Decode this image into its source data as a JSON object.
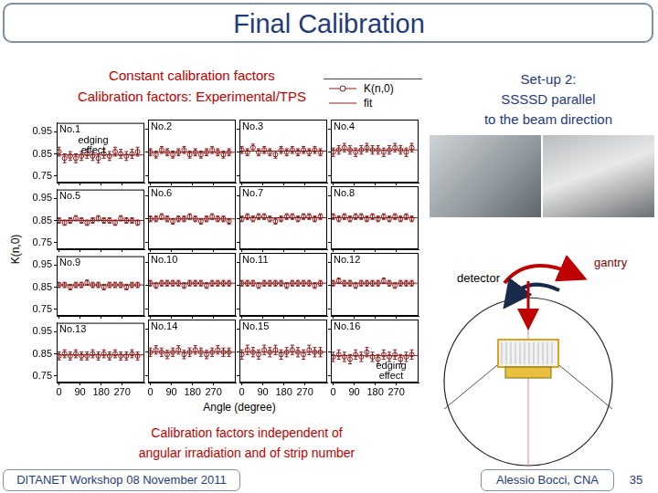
{
  "slide": {
    "title": "Final Calibration",
    "setup_lines": [
      "Set-up 2:",
      "SSSSD parallel",
      "to the beam direction"
    ],
    "diagram_labels": {
      "detector": "detector",
      "gantry": "gantry"
    },
    "caption_lines": [
      "Calibration factors independent of",
      "angular irradiation and of strip number"
    ],
    "footer_left": "DITANET Workshop 08 November 2011",
    "footer_right": "Alessio Bocci, CNA",
    "page": 35
  },
  "chart_data": {
    "type": "scatter",
    "title": "Constant calibration factors",
    "subtitle": "Calibration factors: Experimental/TPS",
    "x_label": "Angle (degree)",
    "y_label": "K(n,0)",
    "xlim": [
      -10,
      365
    ],
    "xticks": [
      0,
      90,
      180,
      270
    ],
    "ylim": [
      0.72,
      0.99
    ],
    "yticks": [
      0.75,
      0.85,
      0.95
    ],
    "grid": false,
    "legend": "top right",
    "series": [
      {
        "name": "K(n,0)",
        "color": "#8b1a1a",
        "marker": "circle"
      },
      {
        "name": "fit",
        "color": "#8b1a1a",
        "type": "line",
        "line_style": "solid"
      }
    ],
    "x": [
      0,
      24,
      48,
      72,
      96,
      120,
      144,
      168,
      192,
      216,
      240,
      264,
      288,
      312,
      336
    ],
    "panels": [
      {
        "title": "No.1",
        "tick_labels": "y",
        "annotation": "edging effect",
        "fit": 0.845,
        "values": [
          0.86,
          0.83,
          0.84,
          0.83,
          0.84,
          0.85,
          0.84,
          0.83,
          0.85,
          0.84,
          0.86,
          0.85,
          0.84,
          0.85,
          0.86
        ],
        "errors": [
          0.02,
          0.02,
          0.02,
          0.02,
          0.02,
          0.02,
          0.02,
          0.02,
          0.02,
          0.02,
          0.02,
          0.02,
          0.02,
          0.02,
          0.02
        ]
      },
      {
        "title": "No.2",
        "tick_labels": false,
        "fit": 0.85,
        "values": [
          0.85,
          0.84,
          0.86,
          0.85,
          0.84,
          0.85,
          0.86,
          0.84,
          0.85,
          0.84,
          0.85,
          0.86,
          0.85,
          0.84,
          0.85
        ],
        "errors": [
          0.015,
          0.015,
          0.015,
          0.015,
          0.015,
          0.015,
          0.015,
          0.015,
          0.015,
          0.015,
          0.015,
          0.015,
          0.015,
          0.015,
          0.015
        ]
      },
      {
        "title": "No.3",
        "tick_labels": false,
        "fit": 0.855,
        "values": [
          0.86,
          0.85,
          0.87,
          0.85,
          0.86,
          0.85,
          0.84,
          0.86,
          0.85,
          0.86,
          0.85,
          0.86,
          0.85,
          0.86,
          0.85
        ],
        "errors": [
          0.015,
          0.015,
          0.015,
          0.015,
          0.015,
          0.015,
          0.015,
          0.015,
          0.015,
          0.015,
          0.015,
          0.015,
          0.015,
          0.015,
          0.015
        ]
      },
      {
        "title": "No.4",
        "tick_labels": false,
        "fit": 0.86,
        "values": [
          0.85,
          0.86,
          0.87,
          0.86,
          0.85,
          0.86,
          0.87,
          0.86,
          0.86,
          0.85,
          0.86,
          0.87,
          0.86,
          0.85,
          0.87
        ],
        "errors": [
          0.018,
          0.018,
          0.018,
          0.018,
          0.018,
          0.018,
          0.018,
          0.018,
          0.018,
          0.018,
          0.018,
          0.018,
          0.018,
          0.018,
          0.018
        ]
      },
      {
        "title": "No.5",
        "tick_labels": "y",
        "fit": 0.85,
        "values": [
          0.85,
          0.84,
          0.85,
          0.86,
          0.85,
          0.84,
          0.85,
          0.86,
          0.85,
          0.85,
          0.84,
          0.86,
          0.85,
          0.85,
          0.84
        ],
        "errors": [
          0.012,
          0.012,
          0.012,
          0.012,
          0.012,
          0.012,
          0.012,
          0.012,
          0.012,
          0.012,
          0.012,
          0.012,
          0.012,
          0.012,
          0.012
        ]
      },
      {
        "title": "No.6",
        "tick_labels": false,
        "fit": 0.85,
        "values": [
          0.85,
          0.85,
          0.86,
          0.85,
          0.84,
          0.85,
          0.85,
          0.86,
          0.85,
          0.84,
          0.85,
          0.86,
          0.85,
          0.85,
          0.84
        ],
        "errors": [
          0.012,
          0.012,
          0.012,
          0.012,
          0.012,
          0.012,
          0.012,
          0.012,
          0.012,
          0.012,
          0.012,
          0.012,
          0.012,
          0.012,
          0.012
        ]
      },
      {
        "title": "No.7",
        "tick_labels": false,
        "fit": 0.855,
        "values": [
          0.85,
          0.86,
          0.85,
          0.86,
          0.86,
          0.85,
          0.84,
          0.85,
          0.86,
          0.86,
          0.85,
          0.86,
          0.86,
          0.85,
          0.86
        ],
        "errors": [
          0.012,
          0.012,
          0.012,
          0.012,
          0.012,
          0.012,
          0.012,
          0.012,
          0.012,
          0.012,
          0.012,
          0.012,
          0.012,
          0.012,
          0.012
        ]
      },
      {
        "title": "No.8",
        "tick_labels": false,
        "fit": 0.855,
        "values": [
          0.86,
          0.85,
          0.86,
          0.85,
          0.86,
          0.86,
          0.85,
          0.86,
          0.85,
          0.86,
          0.85,
          0.86,
          0.85,
          0.86,
          0.85
        ],
        "errors": [
          0.012,
          0.012,
          0.012,
          0.012,
          0.012,
          0.012,
          0.012,
          0.012,
          0.012,
          0.012,
          0.012,
          0.012,
          0.012,
          0.012,
          0.012
        ]
      },
      {
        "title": "No.9",
        "tick_labels": "y",
        "fit": 0.86,
        "values": [
          0.86,
          0.86,
          0.85,
          0.86,
          0.86,
          0.87,
          0.86,
          0.86,
          0.85,
          0.86,
          0.86,
          0.86,
          0.85,
          0.86,
          0.86
        ],
        "errors": [
          0.012,
          0.012,
          0.012,
          0.012,
          0.012,
          0.012,
          0.012,
          0.012,
          0.012,
          0.012,
          0.012,
          0.012,
          0.012,
          0.012,
          0.012
        ]
      },
      {
        "title": "No.10",
        "tick_labels": false,
        "fit": 0.86,
        "values": [
          0.86,
          0.85,
          0.86,
          0.86,
          0.86,
          0.86,
          0.85,
          0.86,
          0.86,
          0.86,
          0.85,
          0.86,
          0.86,
          0.86,
          0.86
        ],
        "errors": [
          0.012,
          0.012,
          0.012,
          0.012,
          0.012,
          0.012,
          0.012,
          0.012,
          0.012,
          0.012,
          0.012,
          0.012,
          0.012,
          0.012,
          0.012
        ]
      },
      {
        "title": "No.11",
        "tick_labels": false,
        "fit": 0.86,
        "values": [
          0.86,
          0.86,
          0.86,
          0.85,
          0.86,
          0.86,
          0.86,
          0.86,
          0.85,
          0.86,
          0.86,
          0.86,
          0.86,
          0.85,
          0.86
        ],
        "errors": [
          0.012,
          0.012,
          0.012,
          0.012,
          0.012,
          0.012,
          0.012,
          0.012,
          0.012,
          0.012,
          0.012,
          0.012,
          0.012,
          0.012,
          0.012
        ]
      },
      {
        "title": "No.12",
        "tick_labels": false,
        "fit": 0.86,
        "values": [
          0.86,
          0.87,
          0.86,
          0.86,
          0.85,
          0.86,
          0.86,
          0.86,
          0.86,
          0.87,
          0.86,
          0.85,
          0.86,
          0.86,
          0.86
        ],
        "errors": [
          0.012,
          0.012,
          0.012,
          0.012,
          0.012,
          0.012,
          0.012,
          0.012,
          0.012,
          0.012,
          0.012,
          0.012,
          0.012,
          0.012,
          0.012
        ]
      },
      {
        "title": "No.13",
        "tick_labels": true,
        "fit": 0.845,
        "values": [
          0.84,
          0.85,
          0.84,
          0.85,
          0.84,
          0.84,
          0.85,
          0.84,
          0.85,
          0.84,
          0.85,
          0.84,
          0.84,
          0.85,
          0.84
        ],
        "errors": [
          0.018,
          0.018,
          0.018,
          0.018,
          0.018,
          0.018,
          0.018,
          0.018,
          0.018,
          0.018,
          0.018,
          0.018,
          0.018,
          0.018,
          0.018
        ]
      },
      {
        "title": "No.14",
        "tick_labels": "x",
        "fit": 0.85,
        "values": [
          0.85,
          0.86,
          0.85,
          0.84,
          0.85,
          0.86,
          0.84,
          0.85,
          0.86,
          0.85,
          0.84,
          0.85,
          0.86,
          0.85,
          0.85
        ],
        "errors": [
          0.018,
          0.018,
          0.018,
          0.018,
          0.018,
          0.018,
          0.018,
          0.018,
          0.018,
          0.018,
          0.018,
          0.018,
          0.018,
          0.018,
          0.018
        ]
      },
      {
        "title": "No.15",
        "tick_labels": "x",
        "fit": 0.85,
        "values": [
          0.84,
          0.86,
          0.85,
          0.84,
          0.86,
          0.85,
          0.86,
          0.84,
          0.85,
          0.86,
          0.85,
          0.84,
          0.86,
          0.85,
          0.85
        ],
        "errors": [
          0.02,
          0.02,
          0.02,
          0.02,
          0.02,
          0.02,
          0.02,
          0.02,
          0.02,
          0.02,
          0.02,
          0.02,
          0.02,
          0.02,
          0.02
        ]
      },
      {
        "title": "No.16",
        "tick_labels": "x",
        "annotation": "edging effect",
        "fit": 0.835,
        "values": [
          0.83,
          0.84,
          0.83,
          0.82,
          0.84,
          0.83,
          0.85,
          0.83,
          0.82,
          0.84,
          0.83,
          0.84,
          0.82,
          0.83,
          0.84
        ],
        "errors": [
          0.02,
          0.02,
          0.02,
          0.02,
          0.02,
          0.02,
          0.02,
          0.02,
          0.02,
          0.02,
          0.02,
          0.02,
          0.02,
          0.02,
          0.02
        ]
      }
    ]
  }
}
